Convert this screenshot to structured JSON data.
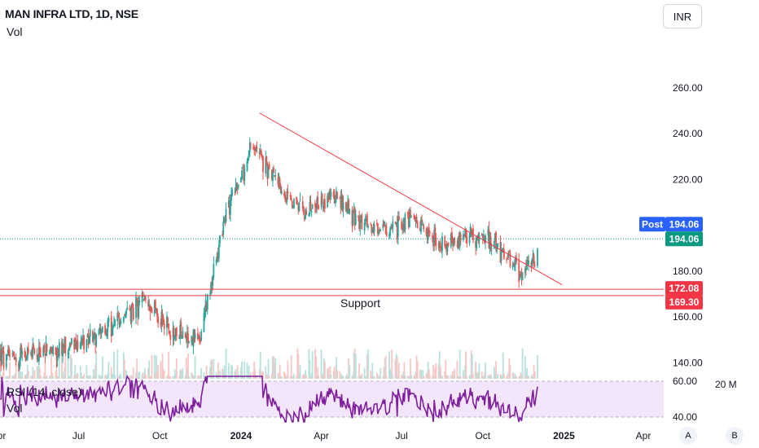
{
  "header": {
    "title": "MAN INFRA LTD, 1D, NSE",
    "vol_label": "Vol",
    "currency_button": "INR"
  },
  "indicators": {
    "rsi_label": "RSI (14, close)",
    "vol_label": "Vol"
  },
  "bottom_buttons": {
    "a_label": "A",
    "b_label": "B"
  },
  "colors": {
    "up": "#26a69a",
    "up_light": "#b7e1dc",
    "down": "#ef5350",
    "down_light": "#f7c6c5",
    "trendline": "#f23645",
    "rsi_line": "#7e1f9c",
    "rsi_band": "#f3e6fb",
    "post_badge": "#2962ff",
    "price_badge": "#089981",
    "support_badge": "#f23645"
  },
  "chart_data": {
    "type": "candlestick",
    "title": "MAN INFRA LTD, 1D, NSE",
    "currency": "INR",
    "x_tick_labels": [
      "Apr",
      "Jul",
      "Oct",
      "2024",
      "Apr",
      "Jul",
      "Oct",
      "2025",
      "Apr"
    ],
    "y_tick_labels": [
      "260.00",
      "240.00",
      "220.00",
      "200.00",
      "180.00",
      "160.00",
      "140.00"
    ],
    "ylim": [
      133,
      277
    ],
    "last_price": 194.06,
    "post_label": "Post",
    "post_price": "194.06",
    "current_price": "194.06",
    "support_levels": [
      {
        "value": 172.08,
        "label": "172.08"
      },
      {
        "value": 169.3,
        "label": "169.30"
      }
    ],
    "support_text": "Support",
    "trendline": {
      "from": {
        "date": "2024-01-22",
        "price": 249
      },
      "to": {
        "date": "2024-12-30",
        "price": 174
      }
    },
    "rsi": {
      "label": "RSI (14, close)",
      "levels": [
        "60.00",
        "40.00"
      ]
    },
    "volume_label": "20 M",
    "price_path": [
      {
        "month": "2023-04",
        "close": 142
      },
      {
        "month": "2023-05",
        "close": 144
      },
      {
        "month": "2023-06",
        "close": 146
      },
      {
        "month": "2023-07",
        "close": 150
      },
      {
        "month": "2023-08",
        "close": 158
      },
      {
        "month": "2023-09",
        "close": 167
      },
      {
        "month": "2023-10",
        "close": 152
      },
      {
        "month": "2023-11",
        "close": 150
      },
      {
        "month": "2023-12",
        "close": 205
      },
      {
        "month": "2024-01",
        "close": 235
      },
      {
        "month": "2024-02",
        "close": 215
      },
      {
        "month": "2024-03",
        "close": 205
      },
      {
        "month": "2024-04",
        "close": 213
      },
      {
        "month": "2024-05",
        "close": 200
      },
      {
        "month": "2024-06",
        "close": 197
      },
      {
        "month": "2024-07",
        "close": 203
      },
      {
        "month": "2024-08",
        "close": 190
      },
      {
        "month": "2024-09",
        "close": 196
      },
      {
        "month": "2024-10",
        "close": 192
      },
      {
        "month": "2024-11",
        "close": 178
      },
      {
        "month": "2024-12",
        "close": 194.06
      }
    ]
  }
}
